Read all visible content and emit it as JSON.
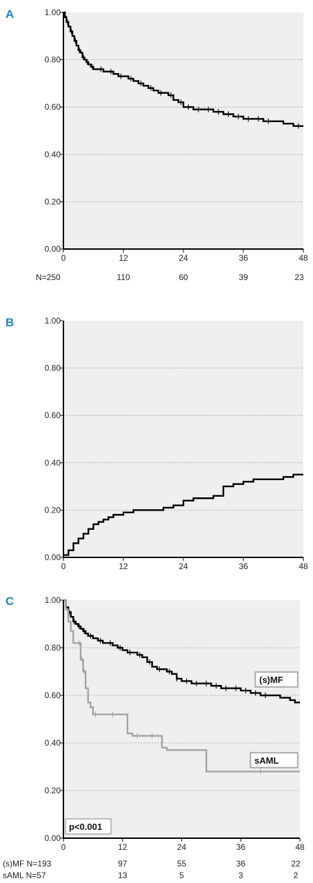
{
  "colors": {
    "plot_bg": "#efefef",
    "grid": "#9a9a9a",
    "axis": "#000000",
    "panel_letter": "#1f86b8",
    "series_dark": "#000000",
    "series_gray": "#a3a3a3"
  },
  "chart_data": [
    {
      "panel": "A",
      "type": "line",
      "subtype": "kaplan-meier",
      "xticks": [
        "0",
        "12",
        "24",
        "36",
        "48"
      ],
      "yticks": [
        "0.00",
        "0.20",
        "0.40",
        "0.60",
        "0.80",
        "1.00"
      ],
      "xlim": [
        0,
        48
      ],
      "ylim": [
        0,
        1
      ],
      "grid": "horizontal dashed",
      "risk_table": [
        {
          "label": "N=250",
          "values": [
            "110",
            "60",
            "39",
            "23"
          ]
        }
      ],
      "series": [
        {
          "color": "#000000",
          "x": [
            0,
            0.3,
            0.6,
            1,
            1.4,
            1.8,
            2.2,
            2.6,
            3,
            3.4,
            3.8,
            4.2,
            4.6,
            5,
            5.5,
            6,
            7,
            8,
            9,
            10,
            11,
            12,
            13,
            14,
            15,
            16,
            17,
            18,
            19,
            20,
            21,
            22,
            23,
            24,
            26,
            28,
            30,
            32,
            34,
            36,
            38,
            40,
            42,
            44,
            46,
            48
          ],
          "y": [
            1.0,
            0.98,
            0.96,
            0.94,
            0.92,
            0.9,
            0.88,
            0.86,
            0.84,
            0.83,
            0.81,
            0.8,
            0.79,
            0.78,
            0.77,
            0.76,
            0.76,
            0.75,
            0.75,
            0.74,
            0.73,
            0.73,
            0.72,
            0.71,
            0.7,
            0.69,
            0.68,
            0.67,
            0.66,
            0.66,
            0.65,
            0.63,
            0.62,
            0.6,
            0.59,
            0.59,
            0.58,
            0.57,
            0.56,
            0.55,
            0.55,
            0.54,
            0.54,
            0.53,
            0.52,
            0.52
          ],
          "censor_x": [
            0.8,
            1.6,
            2.4,
            3.2,
            4.0,
            4.8,
            5.8,
            7.5,
            9.5,
            11.5,
            13.5,
            15.5,
            17.5,
            19.5,
            21.5,
            23.5,
            25,
            27,
            29,
            31,
            33,
            35,
            37,
            39,
            41,
            47
          ]
        }
      ]
    },
    {
      "panel": "B",
      "type": "line",
      "subtype": "cumulative-incidence",
      "xticks": [
        "0",
        "12",
        "24",
        "36",
        "48"
      ],
      "yticks": [
        "0.00",
        "0.20",
        "0.40",
        "0.60",
        "0.80",
        "1.00"
      ],
      "xlim": [
        0,
        48
      ],
      "ylim": [
        0,
        1
      ],
      "grid": "horizontal dashed",
      "series": [
        {
          "color": "#000000",
          "x": [
            0,
            1,
            2,
            3,
            4,
            5,
            6,
            7,
            8,
            9,
            10,
            11,
            12,
            14,
            16,
            18,
            20,
            22,
            24,
            26,
            28,
            30,
            32,
            34,
            36,
            38,
            40,
            44,
            46,
            48
          ],
          "y": [
            0.01,
            0.03,
            0.06,
            0.08,
            0.1,
            0.12,
            0.14,
            0.15,
            0.16,
            0.17,
            0.18,
            0.18,
            0.19,
            0.2,
            0.2,
            0.2,
            0.21,
            0.22,
            0.24,
            0.25,
            0.25,
            0.26,
            0.3,
            0.31,
            0.32,
            0.33,
            0.33,
            0.34,
            0.35,
            0.35
          ]
        }
      ]
    },
    {
      "panel": "C",
      "type": "line",
      "subtype": "kaplan-meier",
      "xticks": [
        "0",
        "12",
        "24",
        "36",
        "48"
      ],
      "yticks": [
        "0.00",
        "0.20",
        "0.40",
        "0.60",
        "0.80",
        "1.00"
      ],
      "xlim": [
        0,
        48
      ],
      "ylim": [
        0,
        1
      ],
      "grid": "horizontal dashed",
      "annotation": "p<0.001",
      "risk_table": [
        {
          "label": "(s)MF  N=193",
          "values": [
            "97",
            "55",
            "36",
            "22"
          ]
        },
        {
          "label": "sAML N=57",
          "values": [
            "13",
            "5",
            "3",
            "2"
          ]
        }
      ],
      "series": [
        {
          "name": "(s)MF",
          "color": "#000000",
          "x": [
            0,
            0.5,
            1,
            1.5,
            2,
            2.5,
            3,
            3.5,
            4,
            4.5,
            5,
            6,
            7,
            8,
            9,
            10,
            11,
            12,
            13,
            14,
            15,
            16,
            17,
            18,
            19,
            20,
            21,
            22,
            23,
            24,
            26,
            28,
            30,
            32,
            34,
            36,
            38,
            40,
            42,
            44,
            46,
            47,
            48
          ],
          "y": [
            1.0,
            0.97,
            0.95,
            0.93,
            0.91,
            0.9,
            0.89,
            0.88,
            0.87,
            0.86,
            0.85,
            0.84,
            0.83,
            0.82,
            0.82,
            0.81,
            0.8,
            0.79,
            0.78,
            0.78,
            0.77,
            0.76,
            0.74,
            0.72,
            0.71,
            0.71,
            0.7,
            0.69,
            0.67,
            0.66,
            0.65,
            0.65,
            0.64,
            0.63,
            0.63,
            0.62,
            0.61,
            0.6,
            0.6,
            0.59,
            0.58,
            0.57,
            0.57
          ],
          "censor_x": [
            1.2,
            2.2,
            3.2,
            4.2,
            5.5,
            7.5,
            9.5,
            11.5,
            13.5,
            15.5,
            17.5,
            19.5,
            21.5,
            23,
            25,
            27,
            29,
            31,
            33,
            35,
            37,
            39,
            41
          ]
        },
        {
          "name": "sAML",
          "color": "#a3a3a3",
          "x": [
            0,
            0.5,
            1,
            1.5,
            2,
            3,
            3.5,
            4,
            4.5,
            5,
            5.5,
            6,
            7,
            8,
            13,
            14,
            20,
            21,
            28,
            29,
            48
          ],
          "y": [
            1.0,
            0.96,
            0.91,
            0.87,
            0.82,
            0.82,
            0.75,
            0.7,
            0.63,
            0.57,
            0.55,
            0.52,
            0.52,
            0.52,
            0.44,
            0.43,
            0.38,
            0.37,
            0.37,
            0.28,
            0.28
          ],
          "censor_x": [
            3.2,
            3.8,
            4.2,
            6.5,
            10,
            15,
            18,
            40
          ]
        }
      ]
    }
  ],
  "panel_letters": [
    "A",
    "B",
    "C"
  ]
}
